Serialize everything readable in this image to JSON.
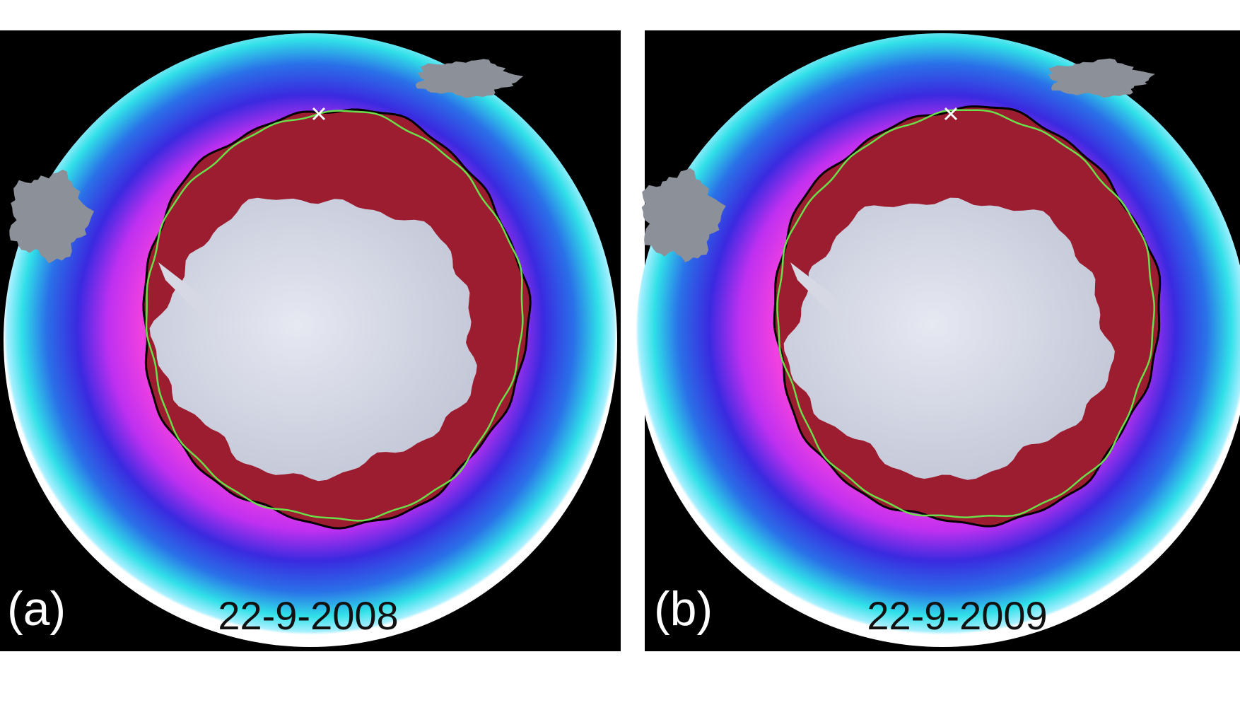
{
  "panels": [
    {
      "label": "(a)",
      "date": "22-9-2008"
    },
    {
      "label": "(b)",
      "date": "22-9-2009"
    }
  ]
}
